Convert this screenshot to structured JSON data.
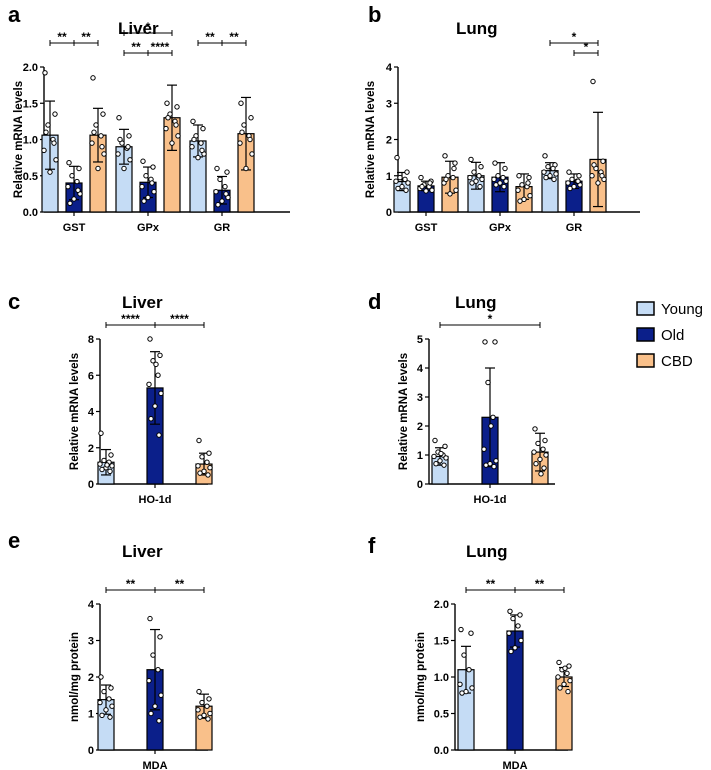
{
  "colors": {
    "Young": "#c5dcf5",
    "Old": "#0b1f8a",
    "CBD": "#f9c08a"
  },
  "legend": [
    {
      "key": "Young",
      "label": "Young"
    },
    {
      "key": "Old",
      "label": "Old"
    },
    {
      "key": "CBD",
      "label": "CBD"
    }
  ],
  "chart_data": [
    {
      "panel": "a",
      "title": "Liver",
      "ylabel": "Relative mRNA levels",
      "type": "bar",
      "categories": [
        "GST",
        "GPx",
        "GR"
      ],
      "ylim": [
        0,
        2
      ],
      "yticks": [
        "0.0",
        "0.5",
        "1.0",
        "1.5",
        "2.0"
      ],
      "ytick_values": [
        0,
        0.5,
        1,
        1.5,
        2
      ],
      "series": [
        {
          "name": "Young",
          "values": [
            1.06,
            0.9,
            0.98
          ],
          "errors": [
            0.47,
            0.24,
            0.22
          ],
          "points": [
            [
              1.92,
              1.35,
              1.2,
              1.0,
              0.85,
              0.72,
              0.55,
              1.1,
              0.95
            ],
            [
              1.3,
              1.05,
              0.95,
              0.88,
              0.8,
              0.72,
              0.6,
              1.0,
              0.9
            ],
            [
              1.25,
              1.15,
              1.05,
              0.95,
              0.9,
              0.8,
              0.75,
              1.0,
              0.85
            ]
          ]
        },
        {
          "name": "Old",
          "values": [
            0.4,
            0.41,
            0.3
          ],
          "errors": [
            0.23,
            0.21,
            0.19
          ],
          "points": [
            [
              0.68,
              0.6,
              0.5,
              0.42,
              0.35,
              0.25,
              0.18,
              0.12,
              0.3
            ],
            [
              0.7,
              0.62,
              0.5,
              0.45,
              0.35,
              0.28,
              0.2,
              0.15,
              0.4
            ],
            [
              0.6,
              0.55,
              0.45,
              0.35,
              0.28,
              0.2,
              0.15,
              0.1,
              0.25
            ]
          ]
        },
        {
          "name": "CBD",
          "values": [
            1.06,
            1.3,
            1.08
          ],
          "errors": [
            0.37,
            0.45,
            0.5
          ],
          "points": [
            [
              1.85,
              1.35,
              1.2,
              1.05,
              0.95,
              0.8,
              0.6,
              1.1,
              0.9
            ],
            [
              1.5,
              1.45,
              1.35,
              1.25,
              1.15,
              1.05,
              0.95,
              1.3,
              1.2
            ],
            [
              1.5,
              1.3,
              1.2,
              1.05,
              0.95,
              0.8,
              0.6,
              1.1,
              1.0
            ]
          ]
        }
      ],
      "significance": [
        {
          "from": [
            0,
            0
          ],
          "to": [
            0,
            1
          ],
          "level": 1,
          "label": "**"
        },
        {
          "from": [
            0,
            1
          ],
          "to": [
            0,
            2
          ],
          "level": 1,
          "label": "**"
        },
        {
          "from": [
            1,
            0
          ],
          "to": [
            1,
            2
          ],
          "level": 2,
          "label": "*"
        },
        {
          "from": [
            1,
            0
          ],
          "to": [
            1,
            1
          ],
          "level": 0,
          "label": "**"
        },
        {
          "from": [
            1,
            1
          ],
          "to": [
            1,
            2
          ],
          "level": 0,
          "label": "****"
        },
        {
          "from": [
            2,
            0
          ],
          "to": [
            2,
            1
          ],
          "level": 1,
          "label": "**"
        },
        {
          "from": [
            2,
            1
          ],
          "to": [
            2,
            2
          ],
          "level": 1,
          "label": "**"
        }
      ]
    },
    {
      "panel": "b",
      "title": "Lung",
      "ylabel": "Relative mRNA levels",
      "type": "bar",
      "categories": [
        "GST",
        "GPx",
        "GR"
      ],
      "ylim": [
        0,
        4
      ],
      "yticks": [
        "0",
        "1",
        "2",
        "3",
        "4"
      ],
      "ytick_values": [
        0,
        1,
        2,
        3,
        4
      ],
      "series": [
        {
          "name": "Young",
          "values": [
            0.84,
            1.0,
            1.14
          ],
          "errors": [
            0.25,
            0.37,
            0.22
          ],
          "points": [
            [
              1.5,
              1.1,
              0.95,
              0.9,
              0.85,
              0.8,
              0.7,
              0.65,
              0.6
            ],
            [
              1.45,
              1.25,
              1.1,
              1.0,
              0.95,
              0.9,
              0.85,
              0.8,
              0.7
            ],
            [
              1.55,
              1.3,
              1.25,
              1.2,
              1.1,
              1.05,
              1.0,
              0.95,
              0.9
            ]
          ]
        },
        {
          "name": "Old",
          "values": [
            0.72,
            0.96,
            0.85
          ],
          "errors": [
            0.13,
            0.4,
            0.2
          ],
          "points": [
            [
              0.95,
              0.85,
              0.75,
              0.7,
              0.65,
              0.6,
              0.58,
              0.7,
              0.8
            ],
            [
              1.35,
              1.2,
              1.0,
              0.95,
              0.9,
              0.85,
              0.8,
              0.75,
              0.7
            ],
            [
              1.1,
              1.0,
              0.9,
              0.85,
              0.8,
              0.75,
              0.7,
              0.65,
              0.85
            ]
          ]
        },
        {
          "name": "CBD",
          "values": [
            0.96,
            0.7,
            1.45
          ],
          "errors": [
            0.44,
            0.35,
            1.3
          ],
          "points": [
            [
              1.55,
              1.35,
              1.0,
              0.95,
              0.8,
              0.6,
              0.5,
              0.9,
              1.2
            ],
            [
              1.0,
              0.95,
              0.75,
              0.7,
              0.6,
              0.45,
              0.35,
              0.3,
              0.8
            ],
            [
              3.6,
              1.4,
              1.2,
              1.1,
              1.0,
              0.9,
              0.8,
              1.3,
              1.0
            ]
          ]
        }
      ],
      "significance": [
        {
          "from": [
            2,
            0
          ],
          "to": [
            2,
            2
          ],
          "level": 1,
          "label": "*"
        },
        {
          "from": [
            2,
            1
          ],
          "to": [
            2,
            2
          ],
          "level": 0,
          "label": "*"
        }
      ]
    },
    {
      "panel": "c",
      "title": "Liver",
      "ylabel": "Relative mRNA levels",
      "type": "bar",
      "categories": [
        "HO-1d"
      ],
      "ylim": [
        0,
        8
      ],
      "yticks": [
        "0",
        "2",
        "4",
        "6",
        "8"
      ],
      "ytick_values": [
        0,
        2,
        4,
        6,
        8
      ],
      "series": [
        {
          "name": "Young",
          "values": [
            1.2
          ],
          "errors": [
            0.7
          ],
          "points": [
            [
              2.8,
              1.6,
              1.3,
              1.2,
              1.1,
              1.0,
              0.9,
              0.8,
              0.7,
              1.05
            ]
          ]
        },
        {
          "name": "Old",
          "values": [
            5.3
          ],
          "errors": [
            2.0
          ],
          "points": [
            [
              8.0,
              7.1,
              6.8,
              6.0,
              5.5,
              5.0,
              4.3,
              3.6,
              2.7,
              6.6
            ]
          ]
        },
        {
          "name": "CBD",
          "values": [
            1.1
          ],
          "errors": [
            0.6
          ],
          "points": [
            [
              2.4,
              1.7,
              1.5,
              1.2,
              1.0,
              0.9,
              0.7,
              0.6,
              0.5
            ]
          ]
        }
      ],
      "significance": [
        {
          "from": [
            0,
            0
          ],
          "to": [
            0,
            1
          ],
          "level": 0,
          "label": "****"
        },
        {
          "from": [
            0,
            1
          ],
          "to": [
            0,
            2
          ],
          "level": 0,
          "label": "****"
        }
      ]
    },
    {
      "panel": "d",
      "title": "Lung",
      "ylabel": "Relative mRNA levels",
      "type": "bar",
      "categories": [
        "HO-1d"
      ],
      "ylim": [
        0,
        5
      ],
      "yticks": [
        "0",
        "1",
        "2",
        "3",
        "4",
        "5"
      ],
      "ytick_values": [
        0,
        1,
        2,
        3,
        4,
        5
      ],
      "series": [
        {
          "name": "Young",
          "values": [
            0.95
          ],
          "errors": [
            0.3
          ],
          "points": [
            [
              1.5,
              1.3,
              1.1,
              1.0,
              0.95,
              0.9,
              0.8,
              0.7,
              0.65,
              1.05
            ]
          ]
        },
        {
          "name": "Old",
          "values": [
            2.3
          ],
          "errors": [
            1.7
          ],
          "points": [
            [
              4.9,
              4.9,
              3.5,
              2.3,
              1.2,
              0.8,
              0.7,
              0.65,
              0.6,
              2.0
            ]
          ]
        },
        {
          "name": "CBD",
          "values": [
            1.1
          ],
          "errors": [
            0.65
          ],
          "points": [
            [
              1.9,
              1.5,
              1.4,
              1.2,
              1.1,
              1.0,
              0.85,
              0.7,
              0.55,
              0.35
            ]
          ]
        }
      ],
      "significance": [
        {
          "from": [
            0,
            0
          ],
          "to": [
            0,
            2
          ],
          "level": 0,
          "label": "*"
        }
      ]
    },
    {
      "panel": "e",
      "title": "Liver",
      "ylabel": "nmol/mg protein",
      "type": "bar",
      "categories": [
        "MDA"
      ],
      "ylim": [
        0,
        4
      ],
      "yticks": [
        "0",
        "1",
        "2",
        "3",
        "4"
      ],
      "ytick_values": [
        0,
        1,
        2,
        3,
        4
      ],
      "series": [
        {
          "name": "Young",
          "values": [
            1.38
          ],
          "errors": [
            0.4
          ],
          "points": [
            [
              2.0,
              1.7,
              1.6,
              1.4,
              1.3,
              1.2,
              1.1,
              0.95,
              0.9
            ]
          ]
        },
        {
          "name": "Old",
          "values": [
            2.2
          ],
          "errors": [
            1.1
          ],
          "points": [
            [
              3.6,
              3.1,
              2.6,
              2.2,
              1.9,
              1.5,
              1.2,
              1.0,
              0.8
            ]
          ]
        },
        {
          "name": "CBD",
          "values": [
            1.2
          ],
          "errors": [
            0.33
          ],
          "points": [
            [
              1.6,
              1.4,
              1.3,
              1.2,
              1.1,
              1.0,
              0.95,
              0.9,
              0.85
            ]
          ]
        }
      ],
      "significance": [
        {
          "from": [
            0,
            0
          ],
          "to": [
            0,
            1
          ],
          "level": 0,
          "label": "**"
        },
        {
          "from": [
            0,
            1
          ],
          "to": [
            0,
            2
          ],
          "level": 0,
          "label": "**"
        }
      ]
    },
    {
      "panel": "f",
      "title": "Lung",
      "ylabel": "nmol/mg protein",
      "type": "bar",
      "categories": [
        "MDA"
      ],
      "ylim": [
        0,
        2
      ],
      "yticks": [
        "0.0",
        "0.5",
        "1.0",
        "1.5",
        "2.0"
      ],
      "ytick_values": [
        0,
        0.5,
        1,
        1.5,
        2
      ],
      "series": [
        {
          "name": "Young",
          "values": [
            1.1
          ],
          "errors": [
            0.32
          ],
          "points": [
            [
              1.65,
              1.6,
              1.3,
              1.1,
              0.9,
              0.85,
              0.8,
              0.78
            ]
          ]
        },
        {
          "name": "Old",
          "values": [
            1.63
          ],
          "errors": [
            0.22
          ],
          "points": [
            [
              1.9,
              1.85,
              1.8,
              1.7,
              1.6,
              1.5,
              1.4,
              1.35
            ]
          ]
        },
        {
          "name": "CBD",
          "values": [
            1.0
          ],
          "errors": [
            0.13
          ],
          "points": [
            [
              1.2,
              1.15,
              1.1,
              1.05,
              1.0,
              0.95,
              0.9,
              0.85,
              0.8,
              1.12
            ]
          ]
        }
      ],
      "significance": [
        {
          "from": [
            0,
            0
          ],
          "to": [
            0,
            1
          ],
          "level": 0,
          "label": "**"
        },
        {
          "from": [
            0,
            1
          ],
          "to": [
            0,
            2
          ],
          "level": 0,
          "label": "**"
        }
      ]
    }
  ]
}
